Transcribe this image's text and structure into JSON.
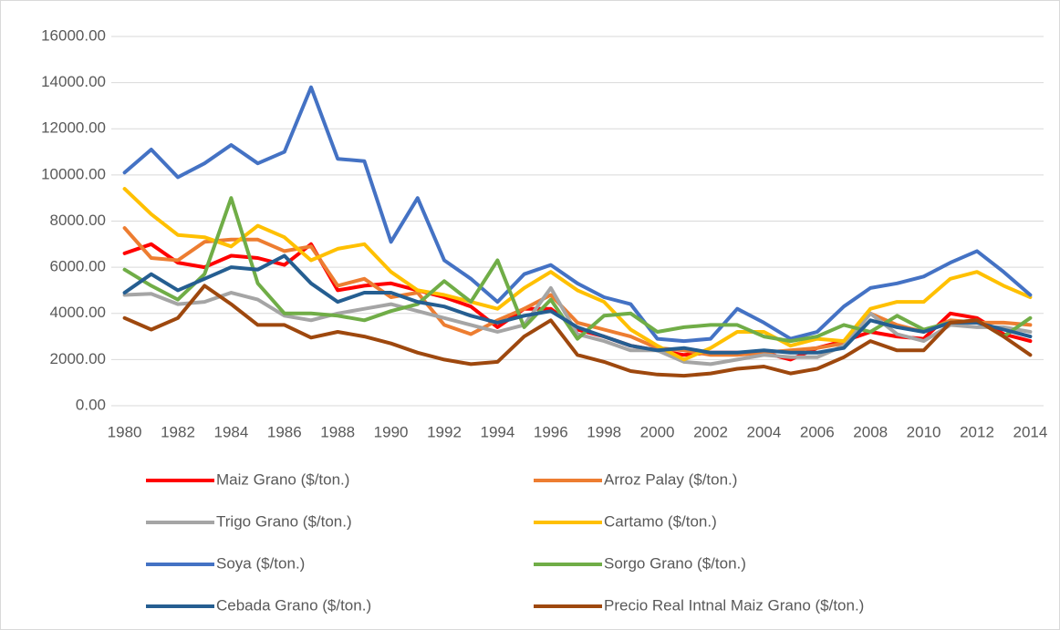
{
  "chart_data": {
    "type": "line",
    "categories": [
      "1980",
      null,
      "1982",
      null,
      "1984",
      null,
      "1986",
      null,
      "1988",
      null,
      "1990",
      null,
      "1992",
      null,
      "1994",
      null,
      "1996",
      null,
      "1998",
      null,
      "2000",
      null,
      "2002",
      null,
      "2004",
      null,
      "2006",
      null,
      "2008",
      null,
      "2010",
      null,
      "2012",
      null,
      "2014"
    ],
    "ylim": [
      0,
      16000
    ],
    "yticks": [
      {
        "value": 0,
        "label": "0.00"
      },
      {
        "value": 2000,
        "label": "2000.00"
      },
      {
        "value": 4000,
        "label": "4000.00"
      },
      {
        "value": 6000,
        "label": "6000.00"
      },
      {
        "value": 8000,
        "label": "8000.00"
      },
      {
        "value": 10000,
        "label": "10000.00"
      },
      {
        "value": 12000,
        "label": "12000.00"
      },
      {
        "value": 14000,
        "label": "14000.00"
      },
      {
        "value": 16000,
        "label": "16000.00"
      }
    ],
    "grid": true,
    "legend": "bottom",
    "series": [
      {
        "name": "Maiz Grano ($/ton.)",
        "color": "#ff0000",
        "values": [
          6600,
          7000,
          6200,
          6000,
          6500,
          6400,
          6100,
          7000,
          5000,
          5200,
          5300,
          5000,
          4700,
          4300,
          3400,
          4200,
          4200,
          3300,
          3000,
          2600,
          2400,
          2200,
          2300,
          2300,
          2300,
          2000,
          2500,
          2800,
          3200,
          3000,
          2900,
          4000,
          3800,
          3100,
          2800
        ]
      },
      {
        "name": "Arroz Palay ($/ton.)",
        "color": "#ed7d31",
        "values": [
          7700,
          6400,
          6300,
          7100,
          7200,
          7200,
          6700,
          6900,
          5200,
          5500,
          4700,
          4900,
          3500,
          3100,
          3700,
          4200,
          4800,
          3600,
          3300,
          3000,
          2500,
          2400,
          2200,
          2200,
          2300,
          2400,
          2500,
          2700,
          4000,
          3500,
          3200,
          3700,
          3600,
          3600,
          3500
        ]
      },
      {
        "name": "Trigo Grano ($/ton.)",
        "color": "#a5a5a5",
        "values": [
          4800,
          4850,
          4400,
          4500,
          4900,
          4600,
          3900,
          3700,
          4000,
          4200,
          4400,
          4100,
          3800,
          3500,
          3200,
          3500,
          5100,
          3100,
          2800,
          2400,
          2400,
          1900,
          1800,
          2000,
          2200,
          2100,
          2100,
          2600,
          4000,
          3100,
          2800,
          3500,
          3400,
          3400,
          3200
        ]
      },
      {
        "name": "Cartamo ($/ton.)",
        "color": "#ffc000",
        "values": [
          9400,
          8300,
          7400,
          7300,
          6900,
          7800,
          7300,
          6300,
          6800,
          7000,
          5800,
          5000,
          4800,
          4500,
          4200,
          5100,
          5800,
          5000,
          4500,
          3300,
          2600,
          2000,
          2500,
          3200,
          3200,
          2600,
          2900,
          2800,
          4200,
          4500,
          4500,
          5500,
          5800,
          5200,
          4700
        ]
      },
      {
        "name": "Soya ($/ton.)",
        "color": "#4472c4",
        "values": [
          10100,
          11100,
          9900,
          10500,
          11300,
          10500,
          11000,
          13800,
          10700,
          10600,
          7100,
          9000,
          6300,
          5500,
          4500,
          5700,
          6100,
          5300,
          4700,
          4400,
          2900,
          2800,
          2900,
          4200,
          3600,
          2900,
          3200,
          4300,
          5100,
          5300,
          5600,
          6200,
          6700,
          5800,
          4800
        ]
      },
      {
        "name": "Sorgo Grano ($/ton.)",
        "color": "#70ad47",
        "values": [
          5900,
          5200,
          4600,
          5700,
          9000,
          5300,
          4000,
          4000,
          3900,
          3700,
          4100,
          4400,
          5400,
          4500,
          6300,
          3400,
          4600,
          2900,
          3900,
          4000,
          3200,
          3400,
          3500,
          3500,
          3000,
          2800,
          3000,
          3500,
          3200,
          3900,
          3300,
          3600,
          3700,
          3000,
          3800
        ]
      },
      {
        "name": "Cebada Grano ($/ton.)",
        "color": "#255e91",
        "values": [
          4900,
          5700,
          5000,
          5500,
          6000,
          5900,
          6500,
          5300,
          4500,
          4900,
          4900,
          4500,
          4300,
          3900,
          3600,
          3900,
          4100,
          3400,
          3000,
          2600,
          2400,
          2500,
          2300,
          2300,
          2400,
          2300,
          2300,
          2500,
          3700,
          3400,
          3200,
          3600,
          3600,
          3300,
          3000
        ]
      },
      {
        "name": "Precio Real Intnal Maiz Grano ($/ton.)",
        "color": "#9e480e",
        "values": [
          3800,
          3300,
          3800,
          5200,
          4400,
          3500,
          3500,
          2950,
          3200,
          3000,
          2700,
          2300,
          2000,
          1800,
          1900,
          3000,
          3700,
          2200,
          1900,
          1500,
          1350,
          1300,
          1400,
          1600,
          1700,
          1400,
          1600,
          2100,
          2800,
          2400,
          2400,
          3600,
          3700,
          3000,
          2200
        ]
      }
    ]
  }
}
